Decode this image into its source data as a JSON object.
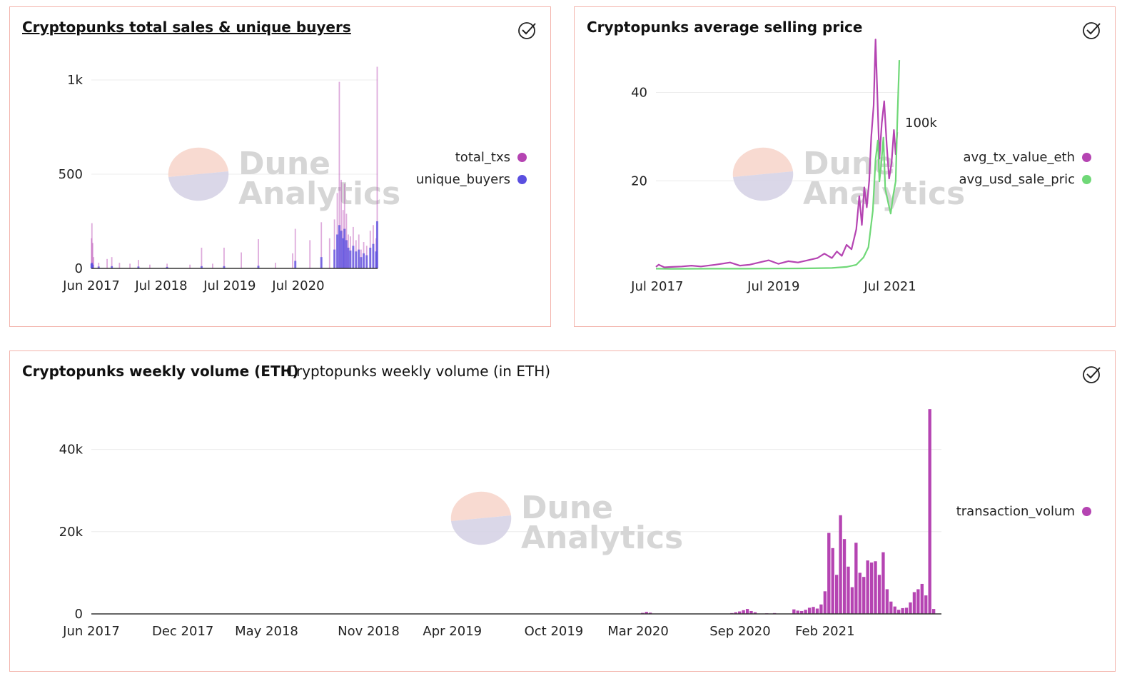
{
  "colors": {
    "purple": "#b544b2",
    "blue": "#5a4fe0",
    "green": "#6fd877",
    "border": "#f3b3ab",
    "grid": "#ececec"
  },
  "watermark": {
    "line1": "Dune",
    "line2": "Analytics"
  },
  "icons": {
    "check": "check-circle-icon"
  },
  "chart_data": [
    {
      "id": "sales",
      "type": "bar",
      "title": "Cryptopunks total sales & unique buyers",
      "x_tick_labels": [
        "Jun 2017",
        "Jul 2018",
        "Jul 2019",
        "Jul 2020"
      ],
      "x_tick_dates": [
        "2017-06-23",
        "2018-07-01",
        "2019-07-01",
        "2020-07-01"
      ],
      "x_range": [
        "2017-06-23",
        "2021-08-28"
      ],
      "y_tick_labels": [
        "0",
        "500",
        "1k"
      ],
      "y_ticks": [
        0,
        500,
        1000
      ],
      "ylim": [
        0,
        1000
      ],
      "legend_position": "right",
      "series": [
        {
          "name": "total_txs",
          "color": "#b544b2",
          "points": [
            [
              "2017-06-24",
              160
            ],
            [
              "2017-06-26",
              240
            ],
            [
              "2017-06-30",
              135
            ],
            [
              "2017-07-05",
              60
            ],
            [
              "2017-08-01",
              30
            ],
            [
              "2017-09-15",
              50
            ],
            [
              "2017-10-10",
              60
            ],
            [
              "2017-11-20",
              30
            ],
            [
              "2018-01-15",
              25
            ],
            [
              "2018-03-01",
              45
            ],
            [
              "2018-05-01",
              20
            ],
            [
              "2018-08-01",
              25
            ],
            [
              "2018-12-01",
              20
            ],
            [
              "2019-02-01",
              110
            ],
            [
              "2019-04-01",
              25
            ],
            [
              "2019-06-01",
              110
            ],
            [
              "2019-09-01",
              85
            ],
            [
              "2019-12-01",
              155
            ],
            [
              "2020-03-01",
              30
            ],
            [
              "2020-06-01",
              80
            ],
            [
              "2020-06-15",
              210
            ],
            [
              "2020-09-01",
              150
            ],
            [
              "2020-11-01",
              245
            ],
            [
              "2020-12-15",
              160
            ],
            [
              "2021-01-10",
              260
            ],
            [
              "2021-01-25",
              400
            ],
            [
              "2021-02-05",
              990
            ],
            [
              "2021-02-15",
              470
            ],
            [
              "2021-02-25",
              310
            ],
            [
              "2021-03-05",
              450
            ],
            [
              "2021-03-15",
              290
            ],
            [
              "2021-03-25",
              180
            ],
            [
              "2021-04-05",
              170
            ],
            [
              "2021-04-20",
              220
            ],
            [
              "2021-05-05",
              150
            ],
            [
              "2021-05-20",
              180
            ],
            [
              "2021-06-01",
              100
            ],
            [
              "2021-06-15",
              140
            ],
            [
              "2021-07-01",
              120
            ],
            [
              "2021-07-20",
              200
            ],
            [
              "2021-08-05",
              230
            ],
            [
              "2021-08-20",
              160
            ],
            [
              "2021-08-26",
              1070
            ]
          ]
        },
        {
          "name": "unique_buyers",
          "color": "#5a4fe0",
          "points": [
            [
              "2017-06-24",
              25
            ],
            [
              "2017-06-26",
              30
            ],
            [
              "2017-06-30",
              20
            ],
            [
              "2017-08-01",
              10
            ],
            [
              "2017-10-10",
              12
            ],
            [
              "2018-03-01",
              10
            ],
            [
              "2018-08-01",
              8
            ],
            [
              "2019-02-01",
              12
            ],
            [
              "2019-06-01",
              12
            ],
            [
              "2019-12-01",
              14
            ],
            [
              "2020-06-15",
              40
            ],
            [
              "2020-11-01",
              60
            ],
            [
              "2021-01-10",
              100
            ],
            [
              "2021-01-25",
              180
            ],
            [
              "2021-02-05",
              230
            ],
            [
              "2021-02-15",
              200
            ],
            [
              "2021-02-25",
              160
            ],
            [
              "2021-03-05",
              210
            ],
            [
              "2021-03-15",
              150
            ],
            [
              "2021-03-25",
              110
            ],
            [
              "2021-04-05",
              95
            ],
            [
              "2021-04-20",
              120
            ],
            [
              "2021-05-05",
              90
            ],
            [
              "2021-05-20",
              100
            ],
            [
              "2021-06-01",
              60
            ],
            [
              "2021-06-15",
              80
            ],
            [
              "2021-07-01",
              70
            ],
            [
              "2021-07-20",
              110
            ],
            [
              "2021-08-05",
              130
            ],
            [
              "2021-08-20",
              90
            ],
            [
              "2021-08-26",
              250
            ]
          ]
        }
      ]
    },
    {
      "id": "price",
      "type": "line",
      "title": "Cryptopunks average selling price",
      "x_tick_labels": [
        "Jul 2017",
        "Jul 2019",
        "Jul 2021"
      ],
      "x_tick_dates": [
        "2017-07-01",
        "2019-07-01",
        "2021-07-01"
      ],
      "x_range": [
        "2017-06-23",
        "2021-08-28"
      ],
      "y_tick_labels": [
        "20",
        "40"
      ],
      "y_ticks": [
        20,
        40
      ],
      "ylim": [
        0,
        48
      ],
      "y2_tick_labels": [
        "100k"
      ],
      "y2_ticks": [
        100000
      ],
      "y2lim": [
        0,
        145000
      ],
      "legend_position": "right",
      "series": [
        {
          "name": "avg_tx_value_eth",
          "color": "#b544b2",
          "axis": "left",
          "points": [
            [
              "2017-06-23",
              0.5
            ],
            [
              "2017-07-10",
              1.0
            ],
            [
              "2017-08-15",
              0.4
            ],
            [
              "2017-10-01",
              0.5
            ],
            [
              "2017-12-01",
              0.6
            ],
            [
              "2018-02-01",
              0.8
            ],
            [
              "2018-04-01",
              0.6
            ],
            [
              "2018-07-01",
              1.0
            ],
            [
              "2018-10-01",
              1.5
            ],
            [
              "2018-12-01",
              0.8
            ],
            [
              "2019-02-01",
              1.0
            ],
            [
              "2019-04-01",
              1.5
            ],
            [
              "2019-06-01",
              2.0
            ],
            [
              "2019-08-01",
              1.2
            ],
            [
              "2019-10-01",
              1.8
            ],
            [
              "2019-12-01",
              1.5
            ],
            [
              "2020-02-01",
              2.0
            ],
            [
              "2020-04-01",
              2.5
            ],
            [
              "2020-05-15",
              3.5
            ],
            [
              "2020-07-01",
              2.5
            ],
            [
              "2020-08-01",
              4.0
            ],
            [
              "2020-09-01",
              3.0
            ],
            [
              "2020-10-01",
              5.5
            ],
            [
              "2020-11-01",
              4.5
            ],
            [
              "2020-12-01",
              9.0
            ],
            [
              "2020-12-20",
              16.5
            ],
            [
              "2021-01-05",
              10.0
            ],
            [
              "2021-01-20",
              18.5
            ],
            [
              "2021-02-05",
              14.0
            ],
            [
              "2021-02-20",
              20.0
            ],
            [
              "2021-03-05",
              30.0
            ],
            [
              "2021-03-20",
              37.0
            ],
            [
              "2021-04-01",
              52.0
            ],
            [
              "2021-04-15",
              36.0
            ],
            [
              "2021-04-25",
              25.0
            ],
            [
              "2021-05-10",
              33.0
            ],
            [
              "2021-05-25",
              38.0
            ],
            [
              "2021-06-10",
              28.0
            ],
            [
              "2021-06-25",
              20.5
            ],
            [
              "2021-07-10",
              24.0
            ],
            [
              "2021-07-25",
              31.5
            ],
            [
              "2021-08-05",
              26.0
            ],
            [
              "2021-08-15",
              31.0
            ]
          ]
        },
        {
          "name": "avg_usd_sale_price",
          "color": "#6fd877",
          "axis": "right",
          "points": [
            [
              "2017-06-23",
              300
            ],
            [
              "2017-10-01",
              200
            ],
            [
              "2018-06-01",
              300
            ],
            [
              "2019-01-01",
              300
            ],
            [
              "2019-07-01",
              400
            ],
            [
              "2020-01-01",
              500
            ],
            [
              "2020-07-01",
              800
            ],
            [
              "2020-10-01",
              1500
            ],
            [
              "2020-12-01",
              3000
            ],
            [
              "2021-01-15",
              8000
            ],
            [
              "2021-02-15",
              15000
            ],
            [
              "2021-03-15",
              40000
            ],
            [
              "2021-04-01",
              75000
            ],
            [
              "2021-04-15",
              88000
            ],
            [
              "2021-04-25",
              60000
            ],
            [
              "2021-05-05",
              70000
            ],
            [
              "2021-05-20",
              90000
            ],
            [
              "2021-06-01",
              55000
            ],
            [
              "2021-06-20",
              45000
            ],
            [
              "2021-07-05",
              38000
            ],
            [
              "2021-07-20",
              50000
            ],
            [
              "2021-08-05",
              60000
            ],
            [
              "2021-08-15",
              100000
            ],
            [
              "2021-08-28",
              143000
            ]
          ]
        }
      ]
    },
    {
      "id": "volume",
      "type": "bar",
      "title": "Cryptopunks weekly volume (ETH)",
      "subtitle": "Cryptopunks weekly volume (in ETH)",
      "x_tick_labels": [
        "Jun 2017",
        "Dec 2017",
        "May 2018",
        "Nov 2018",
        "Apr 2019",
        "Oct 2019",
        "Mar 2020",
        "Sep 2020",
        "Feb 2021"
      ],
      "x_tick_dates": [
        "2017-06-19",
        "2017-12-01",
        "2018-05-01",
        "2018-11-01",
        "2019-04-01",
        "2019-10-01",
        "2020-03-01",
        "2020-09-01",
        "2021-02-01"
      ],
      "x_range": [
        "2017-06-19",
        "2021-08-30"
      ],
      "y_tick_labels": [
        "0",
        "20k",
        "40k"
      ],
      "y_ticks": [
        0,
        20000,
        40000
      ],
      "ylim": [
        0,
        50000
      ],
      "legend_position": "right",
      "series": [
        {
          "name": "transaction_volume",
          "color": "#b544b2",
          "points": [
            [
              "2020-03-09",
              250
            ],
            [
              "2020-03-16",
              500
            ],
            [
              "2020-03-23",
              300
            ],
            [
              "2020-08-17",
              200
            ],
            [
              "2020-08-24",
              400
            ],
            [
              "2020-08-31",
              600
            ],
            [
              "2020-09-07",
              900
            ],
            [
              "2020-09-14",
              1200
            ],
            [
              "2020-09-21",
              700
            ],
            [
              "2020-09-28",
              400
            ],
            [
              "2020-10-19",
              150
            ],
            [
              "2020-11-02",
              200
            ],
            [
              "2020-12-07",
              1100
            ],
            [
              "2020-12-14",
              800
            ],
            [
              "2020-12-21",
              700
            ],
            [
              "2020-12-28",
              1000
            ],
            [
              "2021-01-04",
              1500
            ],
            [
              "2021-01-11",
              1700
            ],
            [
              "2021-01-18",
              1300
            ],
            [
              "2021-01-25",
              2300
            ],
            [
              "2021-02-01",
              5500
            ],
            [
              "2021-02-08",
              19700
            ],
            [
              "2021-02-15",
              16000
            ],
            [
              "2021-02-22",
              9500
            ],
            [
              "2021-03-01",
              24000
            ],
            [
              "2021-03-08",
              18200
            ],
            [
              "2021-03-15",
              11500
            ],
            [
              "2021-03-22",
              6500
            ],
            [
              "2021-03-29",
              17300
            ],
            [
              "2021-04-05",
              10000
            ],
            [
              "2021-04-12",
              9000
            ],
            [
              "2021-04-19",
              13000
            ],
            [
              "2021-04-26",
              12500
            ],
            [
              "2021-05-03",
              12800
            ],
            [
              "2021-05-10",
              9500
            ],
            [
              "2021-05-17",
              15000
            ],
            [
              "2021-05-24",
              6000
            ],
            [
              "2021-05-31",
              3000
            ],
            [
              "2021-06-07",
              1800
            ],
            [
              "2021-06-14",
              1000
            ],
            [
              "2021-06-21",
              1400
            ],
            [
              "2021-06-28",
              1500
            ],
            [
              "2021-07-05",
              2800
            ],
            [
              "2021-07-12",
              5300
            ],
            [
              "2021-07-19",
              6000
            ],
            [
              "2021-07-26",
              7300
            ],
            [
              "2021-08-02",
              4500
            ],
            [
              "2021-08-09",
              49800
            ],
            [
              "2021-08-16",
              1200
            ]
          ]
        }
      ]
    }
  ],
  "legends": {
    "sales": [
      "total_txs",
      "unique_buyers"
    ],
    "price": [
      "avg_tx_value_eth",
      "avg_usd_sale_pric"
    ],
    "volume": [
      "transaction_volum"
    ]
  }
}
